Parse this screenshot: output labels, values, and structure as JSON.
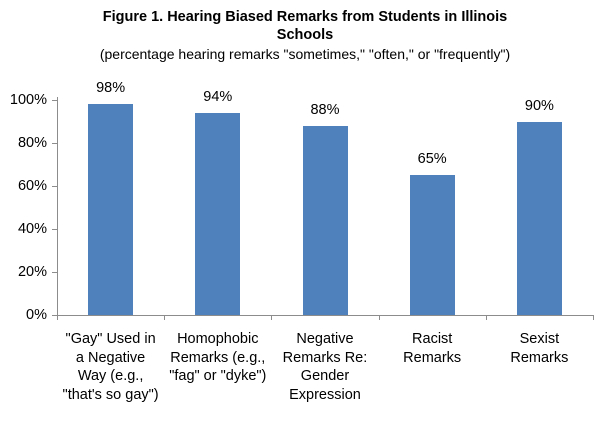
{
  "figure": {
    "title_lines": [
      "Figure 1. Hearing Biased Remarks from Students in Illinois",
      "Schools"
    ],
    "subtitle": "(percentage hearing remarks \"sometimes,\" \"often,\" or \"frequently\")"
  },
  "chart_data": {
    "type": "bar",
    "title": "Figure 1. Hearing Biased Remarks from Students in Illinois Schools",
    "subtitle": "(percentage hearing remarks \"sometimes,\" \"often,\" or \"frequently\")",
    "categories": [
      "\"Gay\" Used in a Negative Way (e.g., \"that's so gay\")",
      "Homophobic Remarks (e.g., \"fag\" or \"dyke\")",
      "Negative Remarks Re: Gender Expression",
      "Racist Remarks",
      "Sexist Remarks"
    ],
    "category_label_lines": [
      [
        "\"Gay\" Used in",
        "a Negative",
        "Way (e.g.,",
        "\"that's so gay\")"
      ],
      [
        "Homophobic",
        "Remarks (e.g.,",
        "\"fag\" or \"dyke\")"
      ],
      [
        "Negative",
        "Remarks Re:",
        "Gender",
        "Expression"
      ],
      [
        "Racist",
        "Remarks"
      ],
      [
        "Sexist",
        "Remarks"
      ]
    ],
    "values": [
      98,
      94,
      88,
      65,
      90
    ],
    "value_labels": [
      "98%",
      "94%",
      "88%",
      "65%",
      "90%"
    ],
    "xlabel": "",
    "ylabel": "",
    "ylim": [
      0,
      100
    ],
    "yticks": [
      0,
      20,
      40,
      60,
      80,
      100
    ],
    "ytick_labels": [
      "0%",
      "20%",
      "40%",
      "60%",
      "80%",
      "100%"
    ],
    "grid": false,
    "legend": false,
    "bar_color": "#4F81BD",
    "axis_color": "#8C8C8C",
    "text_color": "#000000"
  }
}
